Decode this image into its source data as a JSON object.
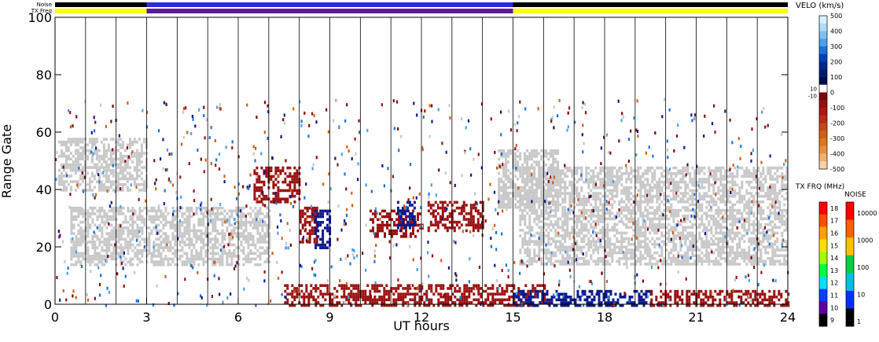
{
  "chart_data": {
    "type": "heatmap",
    "xlabel": "UT hours",
    "ylabel": "Range Gate",
    "xlim": [
      0,
      24
    ],
    "ylim": [
      0,
      100
    ],
    "x_ticks": [
      0,
      3,
      6,
      9,
      12,
      15,
      18,
      21,
      24
    ],
    "y_ticks": [
      0,
      20,
      40,
      60,
      80,
      100
    ],
    "grid": "vertical lines each hour",
    "status_bars": {
      "noise_label": "Noise",
      "txfreq_label": "TX Freq",
      "noise_color": "#000000",
      "txfreq_segments": [
        {
          "from": 0,
          "to": 3,
          "color": "#ffff00"
        },
        {
          "from": 3,
          "to": 15,
          "color": "#5b1a9a"
        },
        {
          "from": 15,
          "to": 24,
          "color": "#ffff00"
        }
      ],
      "noise_segments": [
        {
          "from": 0,
          "to": 3,
          "color": "#000000"
        },
        {
          "from": 3,
          "to": 15,
          "color": "#2a2ad8"
        },
        {
          "from": 15,
          "to": 24,
          "color": "#000000"
        }
      ]
    },
    "velocity_colorbar": {
      "title": "VELO (km/s)",
      "ticks": [
        "500",
        "400",
        "300",
        "200",
        "100",
        "0",
        "-100",
        "-200",
        "-300",
        "-400",
        "-500"
      ],
      "side_labels": [
        "10",
        "-10"
      ],
      "colors": [
        "#d8f0ff",
        "#b0dcf8",
        "#7fc0f0",
        "#4aa0e8",
        "#2070d8",
        "#0040c0",
        "#002890",
        "#001c70",
        "#000a50",
        "#ffffff",
        "#7a0a0a",
        "#9a1010",
        "#b01818",
        "#c02a18",
        "#c84818",
        "#d06018",
        "#e07818",
        "#e89040",
        "#f0b070",
        "#f8d4a8"
      ]
    },
    "txfreq_colorbar": {
      "title": "TX FRQ (MHz)",
      "ticks": [
        "18",
        "17",
        "16",
        "15",
        "14",
        "13",
        "12",
        "11",
        "10",
        "9"
      ],
      "colors": [
        "#ff0000",
        "#ff5000",
        "#ffa000",
        "#ffe000",
        "#a0ff00",
        "#00ff40",
        "#00e0ff",
        "#0040ff",
        "#6000a0",
        "#000000"
      ]
    },
    "noise_colorbar": {
      "title": "NOISE",
      "ticks": [
        "10000",
        "1000",
        "100",
        "10",
        "1"
      ],
      "colors": [
        "#ff0000",
        "#ff6000",
        "#ffc000",
        "#00d040",
        "#00c0e0",
        "#0030ff",
        "#000000"
      ]
    },
    "regions": [
      {
        "label": "ground scatter",
        "color": "#c8c8c8",
        "x": [
          0.1,
          3.0
        ],
        "y": [
          40,
          58
        ]
      },
      {
        "label": "ground scatter",
        "color": "#c8c8c8",
        "x": [
          0.5,
          7.0
        ],
        "y": [
          14,
          34
        ]
      },
      {
        "label": "ground scatter",
        "color": "#c8c8c8",
        "x": [
          15.2,
          24.0
        ],
        "y": [
          14,
          48
        ]
      },
      {
        "label": "ground scatter",
        "color": "#c8c8c8",
        "x": [
          14.5,
          16.5
        ],
        "y": [
          34,
          54
        ]
      },
      {
        "label": "negative velocity",
        "color": "#9a1010",
        "x": [
          8.0,
          8.6
        ],
        "y": [
          22,
          34
        ]
      },
      {
        "label": "positive velocity",
        "color": "#0a1a8c",
        "x": [
          8.5,
          9.0
        ],
        "y": [
          20,
          33
        ]
      },
      {
        "label": "negative velocity",
        "color": "#9a1010",
        "x": [
          10.3,
          12.0
        ],
        "y": [
          24,
          33
        ]
      },
      {
        "label": "positive velocity",
        "color": "#0a1a8c",
        "x": [
          11.2,
          11.8
        ],
        "y": [
          26,
          36
        ]
      },
      {
        "label": "negative velocity",
        "color": "#9a1010",
        "x": [
          12.2,
          14.0
        ],
        "y": [
          26,
          36
        ]
      },
      {
        "label": "negative velocity",
        "color": "#9a1010",
        "x": [
          6.5,
          8.0
        ],
        "y": [
          36,
          48
        ]
      },
      {
        "label": "near-range negative",
        "color": "#9a1010",
        "x": [
          7.5,
          16.0
        ],
        "y": [
          0,
          7
        ]
      },
      {
        "label": "near-range positive",
        "color": "#0a1a8c",
        "x": [
          15.0,
          19.5
        ],
        "y": [
          0,
          5
        ]
      },
      {
        "label": "near-range negative",
        "color": "#9a1010",
        "x": [
          19.5,
          24.0
        ],
        "y": [
          0,
          5
        ]
      }
    ]
  }
}
